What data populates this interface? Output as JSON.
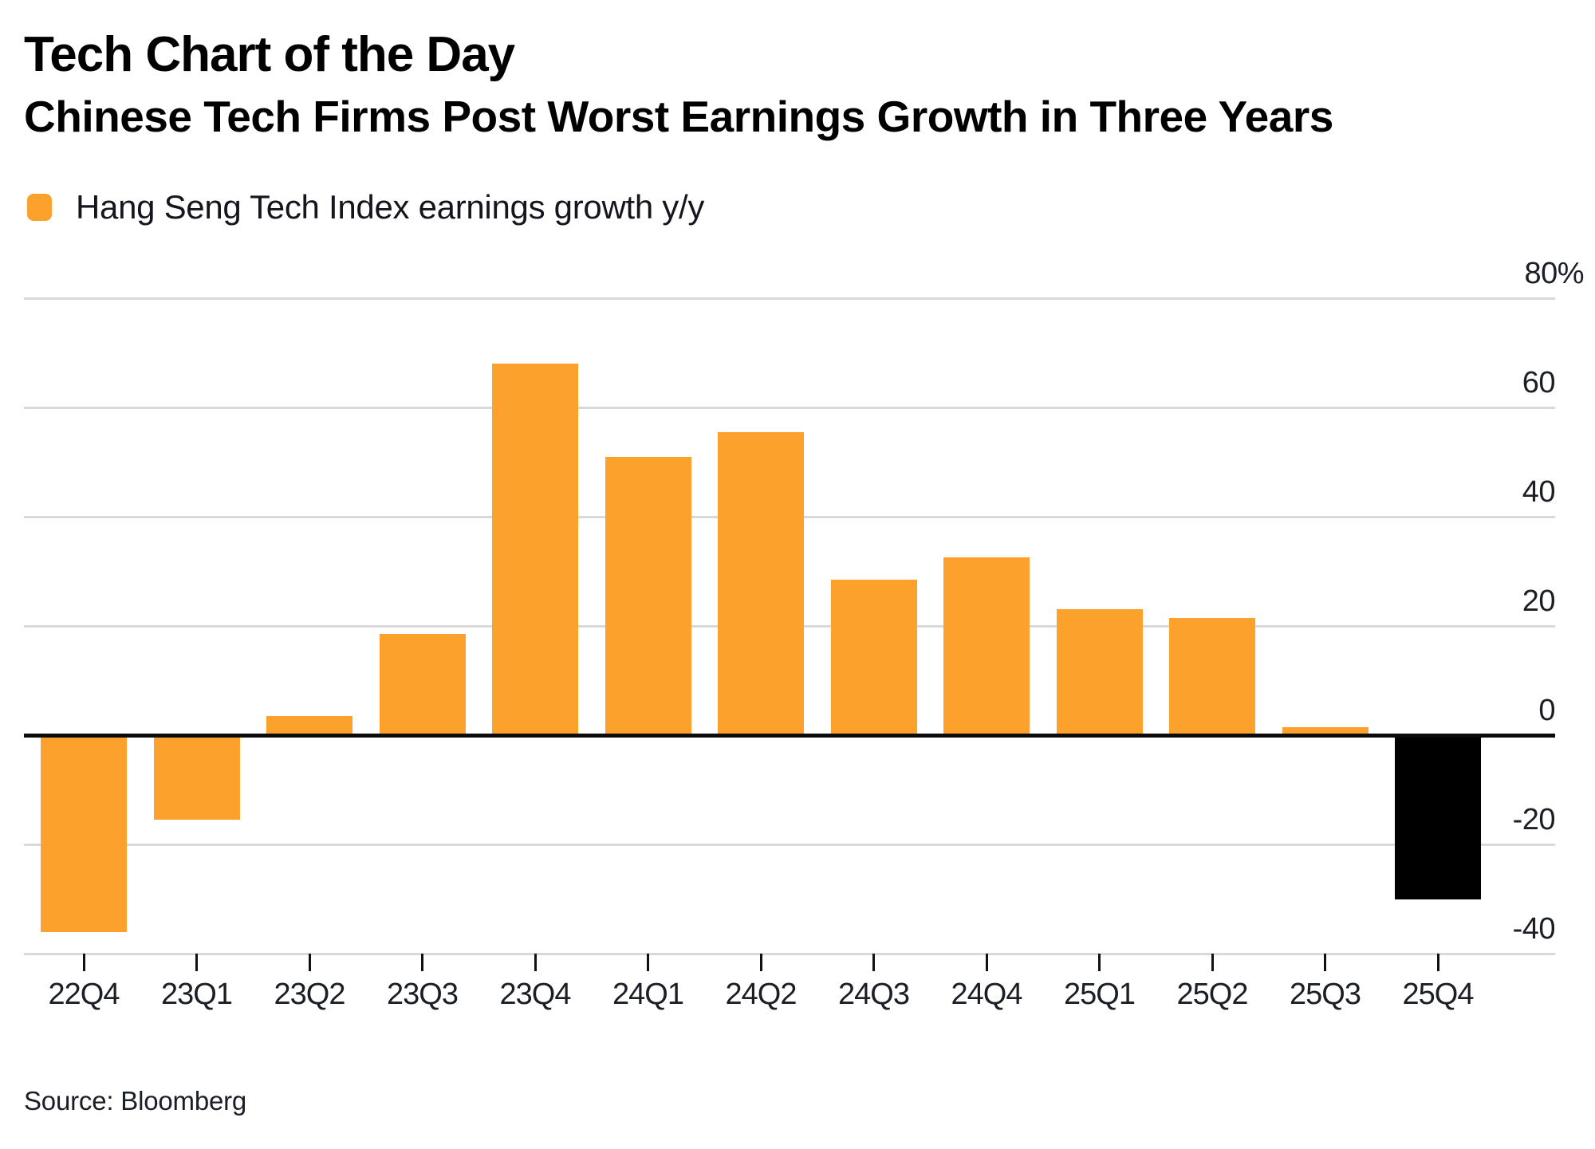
{
  "header": {
    "title": "Tech Chart of the Day",
    "subtitle": "Chinese Tech Firms Post Worst Earnings Growth in Three Years"
  },
  "legend": {
    "label": "Hang Seng Tech Index earnings growth y/y",
    "swatch_color": "#FBA12C"
  },
  "source": "Source: Bloomberg",
  "colors": {
    "bar_default": "#FBA12C",
    "bar_highlight": "#000000",
    "zero_line": "#0b0b0b",
    "gridline": "#d9d9d9",
    "text": "#000000"
  },
  "chart_data": {
    "type": "bar",
    "title": "Tech Chart of the Day",
    "subtitle": "Chinese Tech Firms Post Worst Earnings Growth in Three Years",
    "series_name": "Hang Seng Tech Index earnings growth y/y",
    "categories": [
      "22Q4",
      "23Q1",
      "23Q2",
      "23Q3",
      "23Q4",
      "24Q1",
      "24Q2",
      "24Q3",
      "24Q4",
      "25Q1",
      "25Q2",
      "25Q3",
      "25Q4"
    ],
    "values": [
      -36,
      -15.5,
      3.5,
      18.5,
      68,
      51,
      55.5,
      28.5,
      32.5,
      23,
      21.5,
      1.5,
      -30
    ],
    "unit": "%",
    "highlight_index": 12,
    "ylim": [
      -40,
      80
    ],
    "ytick_step": 20,
    "ytick_labels": [
      "80%",
      "60",
      "40",
      "20",
      "0",
      "-20",
      "-40"
    ],
    "grid": true,
    "legend_position": "top-left",
    "ylabel_side": "right"
  }
}
